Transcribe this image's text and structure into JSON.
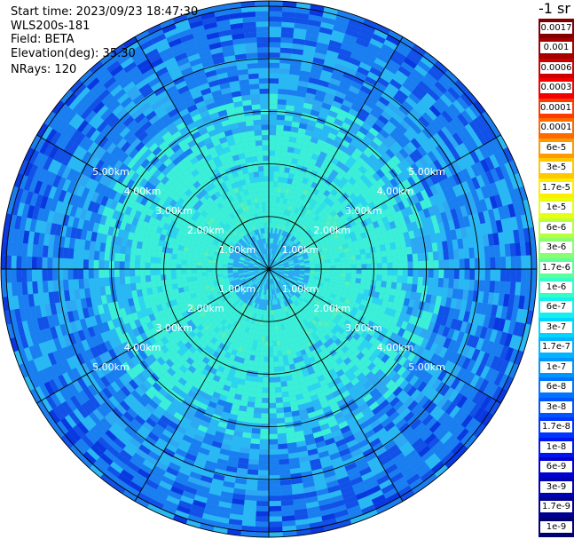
{
  "header": {
    "start_time": "Start time: 2023/09/23 18:47:30",
    "instrument": "WLS200s-181",
    "field": "Field: BETA",
    "elevation": "Elevation(deg): 35.30",
    "nrays": "NRays: 120"
  },
  "colorbar": {
    "unit": "-1 sr",
    "levels": [
      {
        "label": "0.0017",
        "color": "#7f0000"
      },
      {
        "label": "0.001",
        "color": "#a50000"
      },
      {
        "label": "0.0006",
        "color": "#cc0000"
      },
      {
        "label": "0.0003",
        "color": "#f20000"
      },
      {
        "label": "0.00017",
        "color": "#ff3a00"
      },
      {
        "label": "0.0001",
        "color": "#ff6a00"
      },
      {
        "label": "6e-5",
        "color": "#ff9a00"
      },
      {
        "label": "3e-5",
        "color": "#ffc800"
      },
      {
        "label": "1.7e-5",
        "color": "#ffee00"
      },
      {
        "label": "1e-5",
        "color": "#e8ff10"
      },
      {
        "label": "6e-6",
        "color": "#b8ff40"
      },
      {
        "label": "3e-6",
        "color": "#88ff70"
      },
      {
        "label": "1.7e-6",
        "color": "#5cff9c"
      },
      {
        "label": "1e-6",
        "color": "#30ffc8"
      },
      {
        "label": "6e-7",
        "color": "#14f0f0"
      },
      {
        "label": "3e-7",
        "color": "#00d4ff"
      },
      {
        "label": "1.7e-7",
        "color": "#00b4ff"
      },
      {
        "label": "1e-7",
        "color": "#0094ff"
      },
      {
        "label": "6e-8",
        "color": "#0074ff"
      },
      {
        "label": "3e-8",
        "color": "#0054ff"
      },
      {
        "label": "1.7e-8",
        "color": "#0034ff"
      },
      {
        "label": "1e-8",
        "color": "#0014f0"
      },
      {
        "label": "6e-9",
        "color": "#0000d0"
      },
      {
        "label": "3e-9",
        "color": "#0000b0"
      },
      {
        "label": "1.7e-9",
        "color": "#000090"
      },
      {
        "label": "1e-9",
        "color": "#000070"
      }
    ]
  },
  "ppi": {
    "range_rings": [
      "1.00km",
      "2.00km",
      "3.00km",
      "4.00km",
      "5.00km"
    ],
    "ring_km": [
      1,
      2,
      3,
      4,
      5
    ],
    "max_range_km": 5.1,
    "spoke_count": 12,
    "colors": {
      "inner": "#2ea8f2",
      "mid": "#3cf0d8",
      "outer_a": "#1a7ef0",
      "outer_b": "#2ab8f4",
      "accent": "#56f0b8",
      "far": "#1250e8"
    }
  }
}
